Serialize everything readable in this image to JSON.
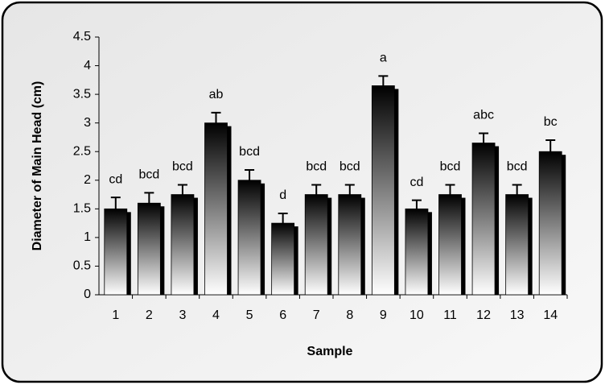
{
  "chart_data": {
    "type": "bar",
    "x_label": "Sample",
    "y_label": "Diameter of Main Head (cm)",
    "categories": [
      "1",
      "2",
      "3",
      "4",
      "5",
      "6",
      "7",
      "8",
      "9",
      "10",
      "11",
      "12",
      "13",
      "14"
    ],
    "values": [
      1.5,
      1.6,
      1.75,
      3.0,
      2.0,
      1.25,
      1.75,
      1.75,
      3.65,
      1.5,
      1.75,
      2.65,
      1.75,
      2.5
    ],
    "errors": [
      0.2,
      0.18,
      0.17,
      0.18,
      0.18,
      0.17,
      0.17,
      0.17,
      0.17,
      0.15,
      0.17,
      0.17,
      0.17,
      0.2
    ],
    "group_labels": [
      "cd",
      "bcd",
      "bcd",
      "ab",
      "bcd",
      "d",
      "bcd",
      "bcd",
      "a",
      "cd",
      "bcd",
      "abc",
      "bcd",
      "bc"
    ],
    "color": "#000000",
    "ylim": [
      0,
      4.5
    ],
    "yticks": [
      0,
      0.5,
      1,
      1.5,
      2,
      2.5,
      3,
      3.5,
      4,
      4.5
    ],
    "grid": false
  }
}
